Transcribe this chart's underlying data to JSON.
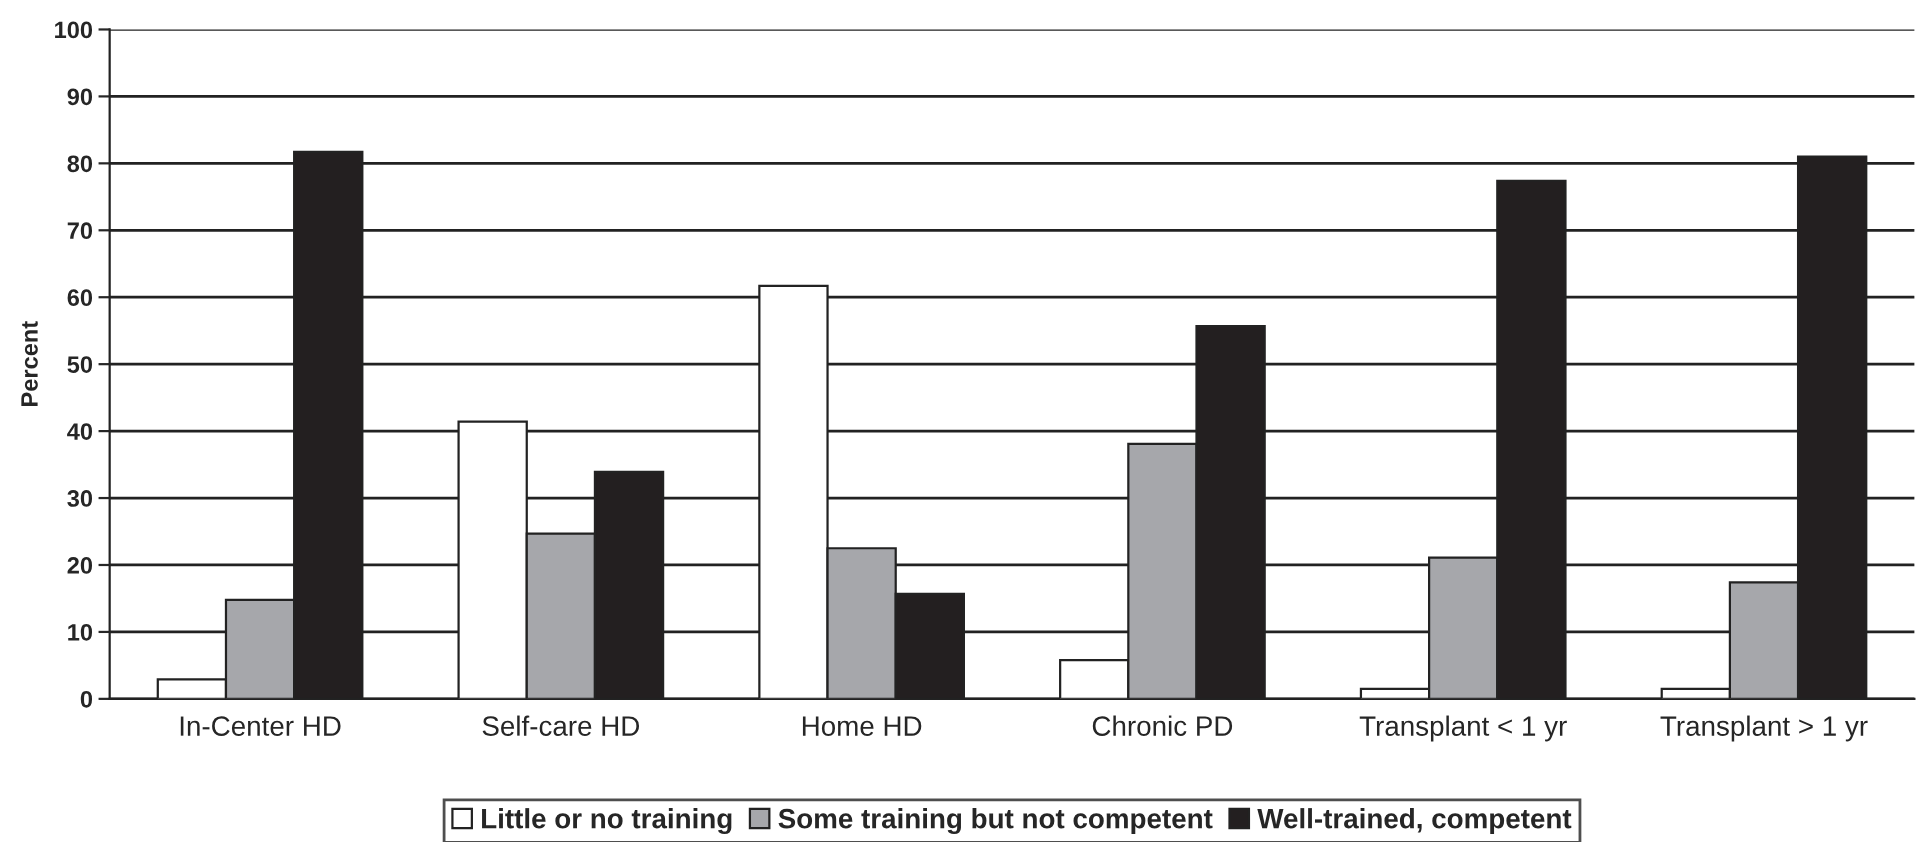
{
  "chart_data": {
    "type": "bar",
    "ylabel": "Percent",
    "categories": [
      "In-Center HD",
      "Self-care HD",
      "Home HD",
      "Chronic PD",
      "Transplant < 1 yr",
      "Transplant > 1 yr"
    ],
    "series": [
      {
        "name": "Little or no training",
        "color": "#ffffff",
        "values": [
          2.9,
          41.4,
          61.7,
          5.8,
          1.5,
          1.5
        ]
      },
      {
        "name": "Some training but not competent",
        "color": "#a6a7ab",
        "values": [
          14.8,
          24.7,
          22.5,
          38.1,
          21.1,
          17.4
        ]
      },
      {
        "name": "Well-trained, competent",
        "color": "#231f20",
        "values": [
          81.7,
          33.9,
          15.7,
          55.7,
          77.4,
          81.0
        ]
      }
    ],
    "ylim": [
      0,
      100
    ],
    "yticks": [
      0,
      10,
      20,
      30,
      40,
      50,
      60,
      70,
      80,
      90,
      100
    ],
    "grid": "y",
    "legend": "bottom"
  }
}
